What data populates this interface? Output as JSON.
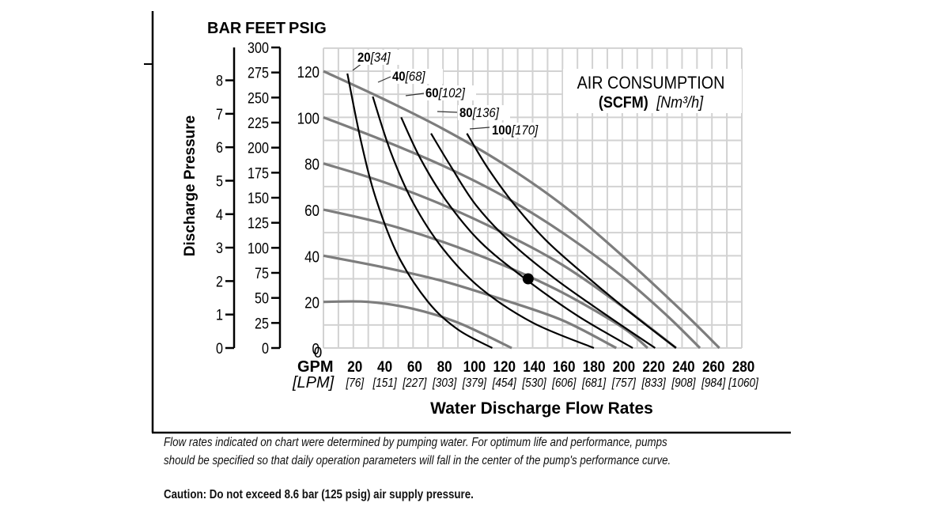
{
  "chart_data": {
    "type": "line",
    "title": "",
    "legend_title": "AIR CONSUMPTION",
    "legend_subtitle_bold": "(SCFM)",
    "legend_subtitle_italic": "[Nm³/h]",
    "xlabel": "Water Discharge Flow Rates",
    "ylabel": "Discharge Pressure",
    "x_unit_primary": "GPM",
    "x_unit_secondary": "[LPM]",
    "xlim": [
      0,
      280
    ],
    "ylim": [
      0,
      130
    ],
    "grid": true,
    "x_ticks": [
      {
        "gpm": "20",
        "lpm": "[76]"
      },
      {
        "gpm": "40",
        "lpm": "[151]"
      },
      {
        "gpm": "60",
        "lpm": "[227]"
      },
      {
        "gpm": "80",
        "lpm": "[303]"
      },
      {
        "gpm": "100",
        "lpm": "[379]"
      },
      {
        "gpm": "120",
        "lpm": "[454]"
      },
      {
        "gpm": "140",
        "lpm": "[530]"
      },
      {
        "gpm": "160",
        "lpm": "[606]"
      },
      {
        "gpm": "180",
        "lpm": "[681]"
      },
      {
        "gpm": "200",
        "lpm": "[757]"
      },
      {
        "gpm": "220",
        "lpm": "[833]"
      },
      {
        "gpm": "240",
        "lpm": "[908]"
      },
      {
        "gpm": "260",
        "lpm": "[984]"
      },
      {
        "gpm": "280",
        "lpm": "[1060]"
      }
    ],
    "x_zero_label": "0",
    "y_axes": {
      "psig": {
        "header": "PSIG",
        "ticks": [
          "0",
          "20",
          "40",
          "60",
          "80",
          "100",
          "120"
        ]
      },
      "feet": {
        "header": "FEET",
        "ticks": [
          "0",
          "25",
          "50",
          "75",
          "100",
          "125",
          "150",
          "175",
          "200",
          "225",
          "250",
          "275",
          "300"
        ]
      },
      "bar": {
        "header": "BAR",
        "ticks": [
          "0",
          "1",
          "2",
          "3",
          "4",
          "5",
          "6",
          "7",
          "8"
        ]
      }
    },
    "pressure_curves": [
      {
        "name": "120 psig",
        "points": [
          [
            0,
            120
          ],
          [
            40,
            108
          ],
          [
            80,
            95
          ],
          [
            120,
            80
          ],
          [
            160,
            62
          ],
          [
            200,
            40
          ],
          [
            240,
            16
          ],
          [
            265,
            0
          ]
        ]
      },
      {
        "name": "100 psig",
        "points": [
          [
            0,
            100
          ],
          [
            40,
            90
          ],
          [
            80,
            79
          ],
          [
            120,
            66
          ],
          [
            160,
            50
          ],
          [
            200,
            31
          ],
          [
            230,
            14
          ],
          [
            252,
            0
          ]
        ]
      },
      {
        "name": "80 psig",
        "points": [
          [
            0,
            80
          ],
          [
            40,
            72
          ],
          [
            80,
            62
          ],
          [
            120,
            50
          ],
          [
            160,
            36
          ],
          [
            200,
            18
          ],
          [
            236,
            0
          ]
        ]
      },
      {
        "name": "60 psig",
        "points": [
          [
            0,
            60
          ],
          [
            40,
            54
          ],
          [
            80,
            46
          ],
          [
            120,
            36
          ],
          [
            160,
            24
          ],
          [
            200,
            9
          ],
          [
            217,
            0
          ]
        ]
      },
      {
        "name": "40 psig",
        "points": [
          [
            0,
            40
          ],
          [
            40,
            35
          ],
          [
            80,
            29
          ],
          [
            120,
            21
          ],
          [
            160,
            12
          ],
          [
            196,
            0
          ]
        ]
      },
      {
        "name": "20 psig",
        "points": [
          [
            0,
            20
          ],
          [
            30,
            20
          ],
          [
            60,
            17
          ],
          [
            90,
            11
          ],
          [
            126,
            0
          ]
        ]
      }
    ],
    "air_curves": [
      {
        "name": "20",
        "label_bold": "20",
        "label_italic": "[34]",
        "points": [
          [
            16,
            119
          ],
          [
            25,
            90
          ],
          [
            35,
            65
          ],
          [
            50,
            40
          ],
          [
            70,
            20
          ],
          [
            90,
            8
          ],
          [
            113,
            0
          ]
        ]
      },
      {
        "name": "40",
        "label_bold": "40",
        "label_italic": "[68]",
        "points": [
          [
            33,
            109
          ],
          [
            45,
            85
          ],
          [
            60,
            63
          ],
          [
            80,
            43
          ],
          [
            105,
            26
          ],
          [
            140,
            11
          ],
          [
            181,
            0
          ]
        ]
      },
      {
        "name": "60",
        "label_bold": "60",
        "label_italic": "[102]",
        "points": [
          [
            52,
            100
          ],
          [
            65,
            82
          ],
          [
            82,
            64
          ],
          [
            105,
            46
          ],
          [
            135,
            30
          ],
          [
            170,
            14
          ],
          [
            207,
            0
          ]
        ]
      },
      {
        "name": "80",
        "label_bold": "80",
        "label_italic": "[136]",
        "points": [
          [
            72,
            93
          ],
          [
            85,
            79
          ],
          [
            102,
            62
          ],
          [
            125,
            46
          ],
          [
            155,
            30
          ],
          [
            190,
            14
          ],
          [
            222,
            0
          ]
        ]
      },
      {
        "name": "100",
        "label_bold": "100",
        "label_italic": "[170]",
        "points": [
          [
            96,
            93
          ],
          [
            110,
            78
          ],
          [
            128,
            62
          ],
          [
            150,
            46
          ],
          [
            178,
            30
          ],
          [
            208,
            14
          ],
          [
            236,
            0
          ]
        ]
      }
    ],
    "marker_point": {
      "gpm": 137,
      "psig": 30
    },
    "colors": {
      "pressure_curve": "#7d7d7d",
      "air_curve": "#000000",
      "grid": "#d2d2d2"
    }
  },
  "notes": {
    "line1": "Flow rates indicated on chart were determined by pumping water. For optimum life and performance, pumps",
    "line2": "should be specified so that daily operation parameters will fall in the center of the pump's performance curve.",
    "caution": "Caution: Do not exceed 8.6 bar (125 psig) air supply pressure."
  }
}
